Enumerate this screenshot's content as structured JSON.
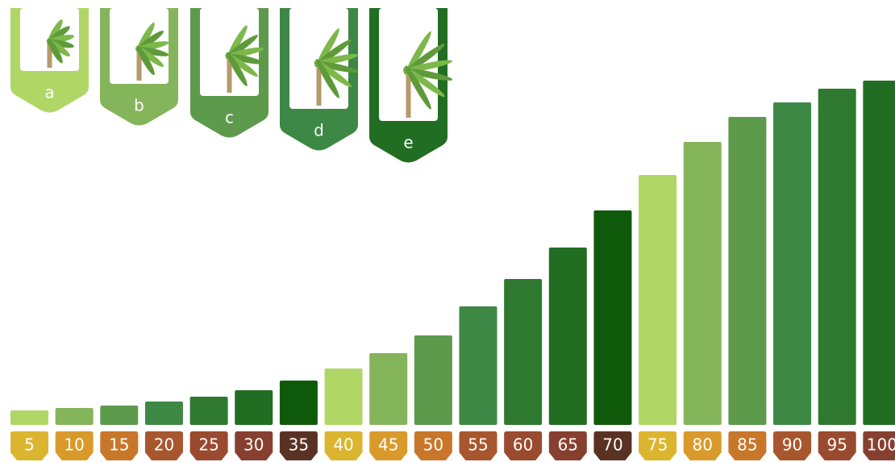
{
  "chart_data": {
    "type": "bar",
    "categories": [
      "5",
      "10",
      "15",
      "20",
      "25",
      "30",
      "35",
      "40",
      "45",
      "50",
      "55",
      "60",
      "65",
      "70",
      "75",
      "80",
      "85",
      "90",
      "95",
      "100"
    ],
    "values": [
      18,
      21,
      24,
      29,
      35,
      43,
      55,
      70,
      89,
      111,
      147,
      181,
      220,
      266,
      310,
      351,
      382,
      400,
      417,
      427
    ],
    "colors": [
      "#b0d766",
      "#84b55a",
      "#5e9a4c",
      "#3d8845",
      "#2f7a30",
      "#216e23",
      "#0f5a0a",
      "#b0d766",
      "#84b55a",
      "#5e9a4c",
      "#3d8845",
      "#2f7a30",
      "#216e23",
      "#0f5a0a",
      "#b0d766",
      "#84b55a",
      "#5e9a4c",
      "#3d8845",
      "#2f7a30",
      "#216e23"
    ],
    "label_colors": [
      "#dcb530",
      "#d99a2b",
      "#c8762a",
      "#a8562e",
      "#9a4a2e",
      "#874030",
      "#5a3224",
      "#dcb530",
      "#d99a2b",
      "#c8762a",
      "#a8562e",
      "#9a4a2e",
      "#874030",
      "#5a3224",
      "#dcb530",
      "#d99a2b",
      "#c8762a",
      "#a8562e",
      "#9a4a2e",
      "#874030"
    ],
    "legend": [
      {
        "label": "a",
        "color": "#b0d766"
      },
      {
        "label": "b",
        "color": "#84b55a"
      },
      {
        "label": "c",
        "color": "#5e9a4c"
      },
      {
        "label": "d",
        "color": "#3d8845"
      },
      {
        "label": "e",
        "color": "#216e23"
      }
    ]
  }
}
